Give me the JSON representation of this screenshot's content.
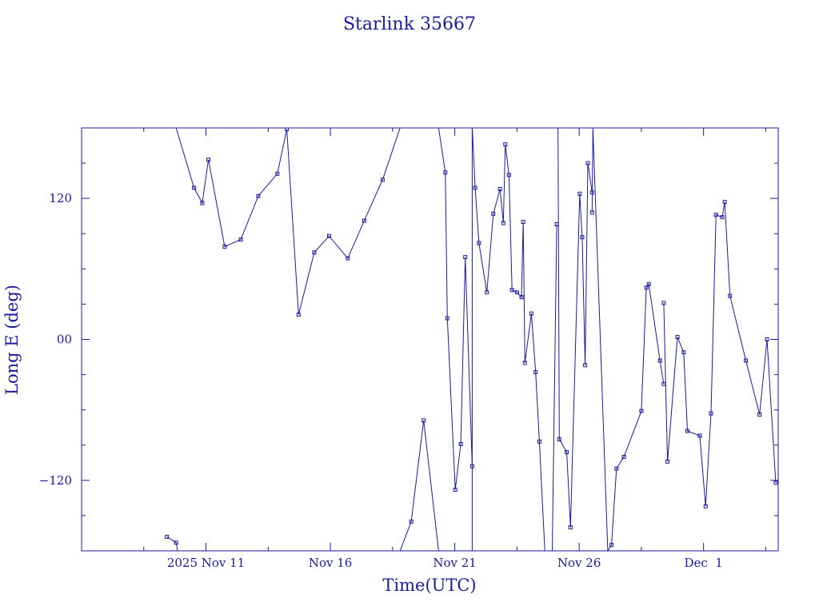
{
  "chart_data": {
    "type": "line",
    "title": "Starlink 35667",
    "xlabel": "Time(UTC)",
    "ylabel": "Long E (deg)",
    "x_unit": "days (November 2025)",
    "xlim": [
      6.0,
      34.0
    ],
    "ylim": [
      -180,
      180
    ],
    "x_ticks": [
      {
        "value": 11,
        "label": "2025 Nov 11"
      },
      {
        "value": 16,
        "label": "Nov 16"
      },
      {
        "value": 21,
        "label": "Nov 21"
      },
      {
        "value": 26,
        "label": "Nov 26"
      },
      {
        "value": 31,
        "label": "Dec  1"
      }
    ],
    "y_ticks": [
      {
        "value": 120,
        "label": "120"
      },
      {
        "value": 0,
        "label": "00"
      },
      {
        "value": -120,
        "label": "−120"
      }
    ],
    "grid": false,
    "legend": "none",
    "color": "#1a1a9e",
    "series": [
      {
        "x": [
          9.43,
          9.8,
          9.86
        ],
        "y": [
          -168,
          -173,
          -180
        ]
      },
      {
        "x": [
          9.8,
          10.52,
          10.85,
          11.1,
          11.75,
          12.4,
          13.1,
          13.87,
          14.25,
          14.72,
          15.35,
          15.95,
          16.7,
          17.36,
          18.1,
          18.8
        ],
        "y": [
          180,
          129,
          116,
          153,
          79,
          85,
          122,
          141,
          179,
          21,
          74,
          88,
          69,
          101,
          136,
          180
        ]
      },
      {
        "x": [
          18.8,
          19.25,
          19.75,
          20.35
        ],
        "y": [
          -180,
          -155,
          -69,
          -180
        ]
      },
      {
        "x": [
          20.35,
          20.62,
          20.7,
          21.02,
          21.24,
          21.42,
          21.7
        ],
        "y": [
          180,
          142,
          18,
          -128,
          -89,
          70,
          -108
        ]
      },
      {
        "x": [
          21.7,
          21.7,
          21.82,
          21.97,
          22.29,
          22.55,
          22.82,
          22.95,
          23.03,
          23.18,
          23.3,
          23.5,
          23.68,
          23.75,
          23.82,
          24.08,
          24.25,
          24.4,
          24.62,
          24.92,
          25.1
        ],
        "y": [
          -180,
          180,
          129,
          82,
          40,
          107,
          128,
          99,
          166,
          140,
          42,
          40,
          36,
          100,
          -20,
          22,
          -28,
          -87,
          -180,
          -180,
          98
        ]
      },
      {
        "x": [
          25.1,
          25.15,
          25.2,
          25.5,
          25.65,
          26.02,
          26.12,
          26.24,
          26.35,
          26.52
        ],
        "y": [
          180,
          180,
          -85,
          -96,
          -160,
          124,
          87,
          -22,
          150,
          125
        ]
      },
      {
        "x": [
          26.52,
          26.55,
          27.15,
          27.3,
          27.5,
          27.8,
          28.5,
          28.7,
          28.8,
          29.25,
          29.4
        ],
        "y": [
          108,
          180,
          -180,
          -175,
          -110,
          -100,
          -61,
          44,
          47,
          -18,
          -38
        ]
      },
      {
        "x": [
          29.4,
          29.55,
          29.95,
          30.2,
          30.35,
          30.85,
          31.08,
          31.3,
          31.5,
          31.75,
          31.85,
          32.06,
          32.7,
          33.25,
          33.55
        ],
        "y": [
          31,
          -104,
          2,
          -11,
          -78,
          -82,
          -142,
          -63,
          106,
          104,
          117,
          37,
          -18,
          -64,
          0
        ]
      },
      {
        "x": [
          33.55,
          33.9
        ],
        "y": [
          0,
          -122
        ]
      },
      {
        "x": [
          34.05,
          34.25,
          34.45,
          34.7,
          34.78,
          34.85
        ],
        "y": [
          180,
          157,
          111,
          108,
          56,
          114
        ]
      }
    ]
  }
}
